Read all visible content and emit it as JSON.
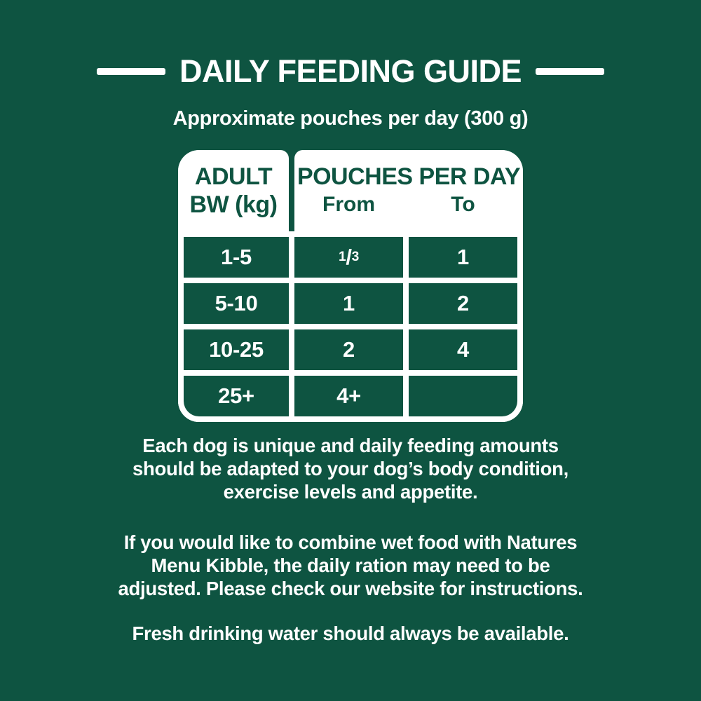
{
  "theme": {
    "background_green": "#0E5441",
    "text_white": "#FFFFFF",
    "table_card_white": "#FFFFFF",
    "header_text_green": "#0E5441"
  },
  "header": {
    "title": "DAILY FEEDING GUIDE",
    "subtitle": "Approximate pouches per day (300 g)"
  },
  "table": {
    "bw_header_line1": "ADULT",
    "bw_header_line2": "BW (kg)",
    "pouches_header": "POUCHES PER DAY",
    "from_label": "From",
    "to_label": "To",
    "rows": [
      {
        "bw": "1-5",
        "from": "1/3",
        "to": "1"
      },
      {
        "bw": "5-10",
        "from": "1",
        "to": "2"
      },
      {
        "bw": "10-25",
        "from": "2",
        "to": "4"
      },
      {
        "bw": "25+",
        "from": "4+",
        "to": ""
      }
    ]
  },
  "notes": [
    {
      "lines": [
        "Each dog is unique and daily feeding amounts",
        "should be adapted to your dog’s body condition,",
        "exercise levels and appetite."
      ]
    },
    {
      "lines": [
        "If you would like to combine wet food with Natures",
        "Menu Kibble, the daily ration may need to be",
        "adjusted. Please check our website for instructions."
      ]
    },
    {
      "lines": [
        "Fresh drinking water should always be available."
      ]
    }
  ]
}
